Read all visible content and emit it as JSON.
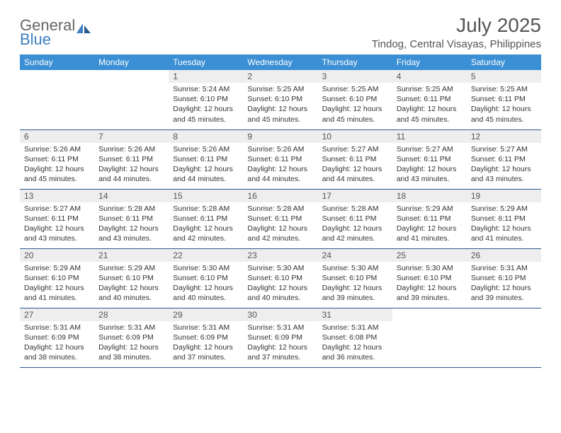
{
  "brand": {
    "name1": "General",
    "name2": "Blue"
  },
  "title": "July 2025",
  "subtitle": "Tindog, Central Visayas, Philippines",
  "colors": {
    "header_bg": "#3b8fd4",
    "header_text": "#ffffff",
    "daynum_bg": "#eeeeee",
    "border": "#2c5a8a",
    "text": "#333333",
    "title_text": "#555555",
    "logo_blue": "#3b7fc4"
  },
  "columns": [
    "Sunday",
    "Monday",
    "Tuesday",
    "Wednesday",
    "Thursday",
    "Friday",
    "Saturday"
  ],
  "weeks": [
    [
      null,
      null,
      {
        "n": "1",
        "sr": "5:24 AM",
        "ss": "6:10 PM",
        "dl": "12 hours and 45 minutes."
      },
      {
        "n": "2",
        "sr": "5:25 AM",
        "ss": "6:10 PM",
        "dl": "12 hours and 45 minutes."
      },
      {
        "n": "3",
        "sr": "5:25 AM",
        "ss": "6:10 PM",
        "dl": "12 hours and 45 minutes."
      },
      {
        "n": "4",
        "sr": "5:25 AM",
        "ss": "6:11 PM",
        "dl": "12 hours and 45 minutes."
      },
      {
        "n": "5",
        "sr": "5:25 AM",
        "ss": "6:11 PM",
        "dl": "12 hours and 45 minutes."
      }
    ],
    [
      {
        "n": "6",
        "sr": "5:26 AM",
        "ss": "6:11 PM",
        "dl": "12 hours and 45 minutes."
      },
      {
        "n": "7",
        "sr": "5:26 AM",
        "ss": "6:11 PM",
        "dl": "12 hours and 44 minutes."
      },
      {
        "n": "8",
        "sr": "5:26 AM",
        "ss": "6:11 PM",
        "dl": "12 hours and 44 minutes."
      },
      {
        "n": "9",
        "sr": "5:26 AM",
        "ss": "6:11 PM",
        "dl": "12 hours and 44 minutes."
      },
      {
        "n": "10",
        "sr": "5:27 AM",
        "ss": "6:11 PM",
        "dl": "12 hours and 44 minutes."
      },
      {
        "n": "11",
        "sr": "5:27 AM",
        "ss": "6:11 PM",
        "dl": "12 hours and 43 minutes."
      },
      {
        "n": "12",
        "sr": "5:27 AM",
        "ss": "6:11 PM",
        "dl": "12 hours and 43 minutes."
      }
    ],
    [
      {
        "n": "13",
        "sr": "5:27 AM",
        "ss": "6:11 PM",
        "dl": "12 hours and 43 minutes."
      },
      {
        "n": "14",
        "sr": "5:28 AM",
        "ss": "6:11 PM",
        "dl": "12 hours and 43 minutes."
      },
      {
        "n": "15",
        "sr": "5:28 AM",
        "ss": "6:11 PM",
        "dl": "12 hours and 42 minutes."
      },
      {
        "n": "16",
        "sr": "5:28 AM",
        "ss": "6:11 PM",
        "dl": "12 hours and 42 minutes."
      },
      {
        "n": "17",
        "sr": "5:28 AM",
        "ss": "6:11 PM",
        "dl": "12 hours and 42 minutes."
      },
      {
        "n": "18",
        "sr": "5:29 AM",
        "ss": "6:11 PM",
        "dl": "12 hours and 41 minutes."
      },
      {
        "n": "19",
        "sr": "5:29 AM",
        "ss": "6:11 PM",
        "dl": "12 hours and 41 minutes."
      }
    ],
    [
      {
        "n": "20",
        "sr": "5:29 AM",
        "ss": "6:10 PM",
        "dl": "12 hours and 41 minutes."
      },
      {
        "n": "21",
        "sr": "5:29 AM",
        "ss": "6:10 PM",
        "dl": "12 hours and 40 minutes."
      },
      {
        "n": "22",
        "sr": "5:30 AM",
        "ss": "6:10 PM",
        "dl": "12 hours and 40 minutes."
      },
      {
        "n": "23",
        "sr": "5:30 AM",
        "ss": "6:10 PM",
        "dl": "12 hours and 40 minutes."
      },
      {
        "n": "24",
        "sr": "5:30 AM",
        "ss": "6:10 PM",
        "dl": "12 hours and 39 minutes."
      },
      {
        "n": "25",
        "sr": "5:30 AM",
        "ss": "6:10 PM",
        "dl": "12 hours and 39 minutes."
      },
      {
        "n": "26",
        "sr": "5:31 AM",
        "ss": "6:10 PM",
        "dl": "12 hours and 39 minutes."
      }
    ],
    [
      {
        "n": "27",
        "sr": "5:31 AM",
        "ss": "6:09 PM",
        "dl": "12 hours and 38 minutes."
      },
      {
        "n": "28",
        "sr": "5:31 AM",
        "ss": "6:09 PM",
        "dl": "12 hours and 38 minutes."
      },
      {
        "n": "29",
        "sr": "5:31 AM",
        "ss": "6:09 PM",
        "dl": "12 hours and 37 minutes."
      },
      {
        "n": "30",
        "sr": "5:31 AM",
        "ss": "6:09 PM",
        "dl": "12 hours and 37 minutes."
      },
      {
        "n": "31",
        "sr": "5:31 AM",
        "ss": "6:08 PM",
        "dl": "12 hours and 36 minutes."
      },
      null,
      null
    ]
  ],
  "labels": {
    "sunrise": "Sunrise:",
    "sunset": "Sunset:",
    "daylight": "Daylight:"
  }
}
